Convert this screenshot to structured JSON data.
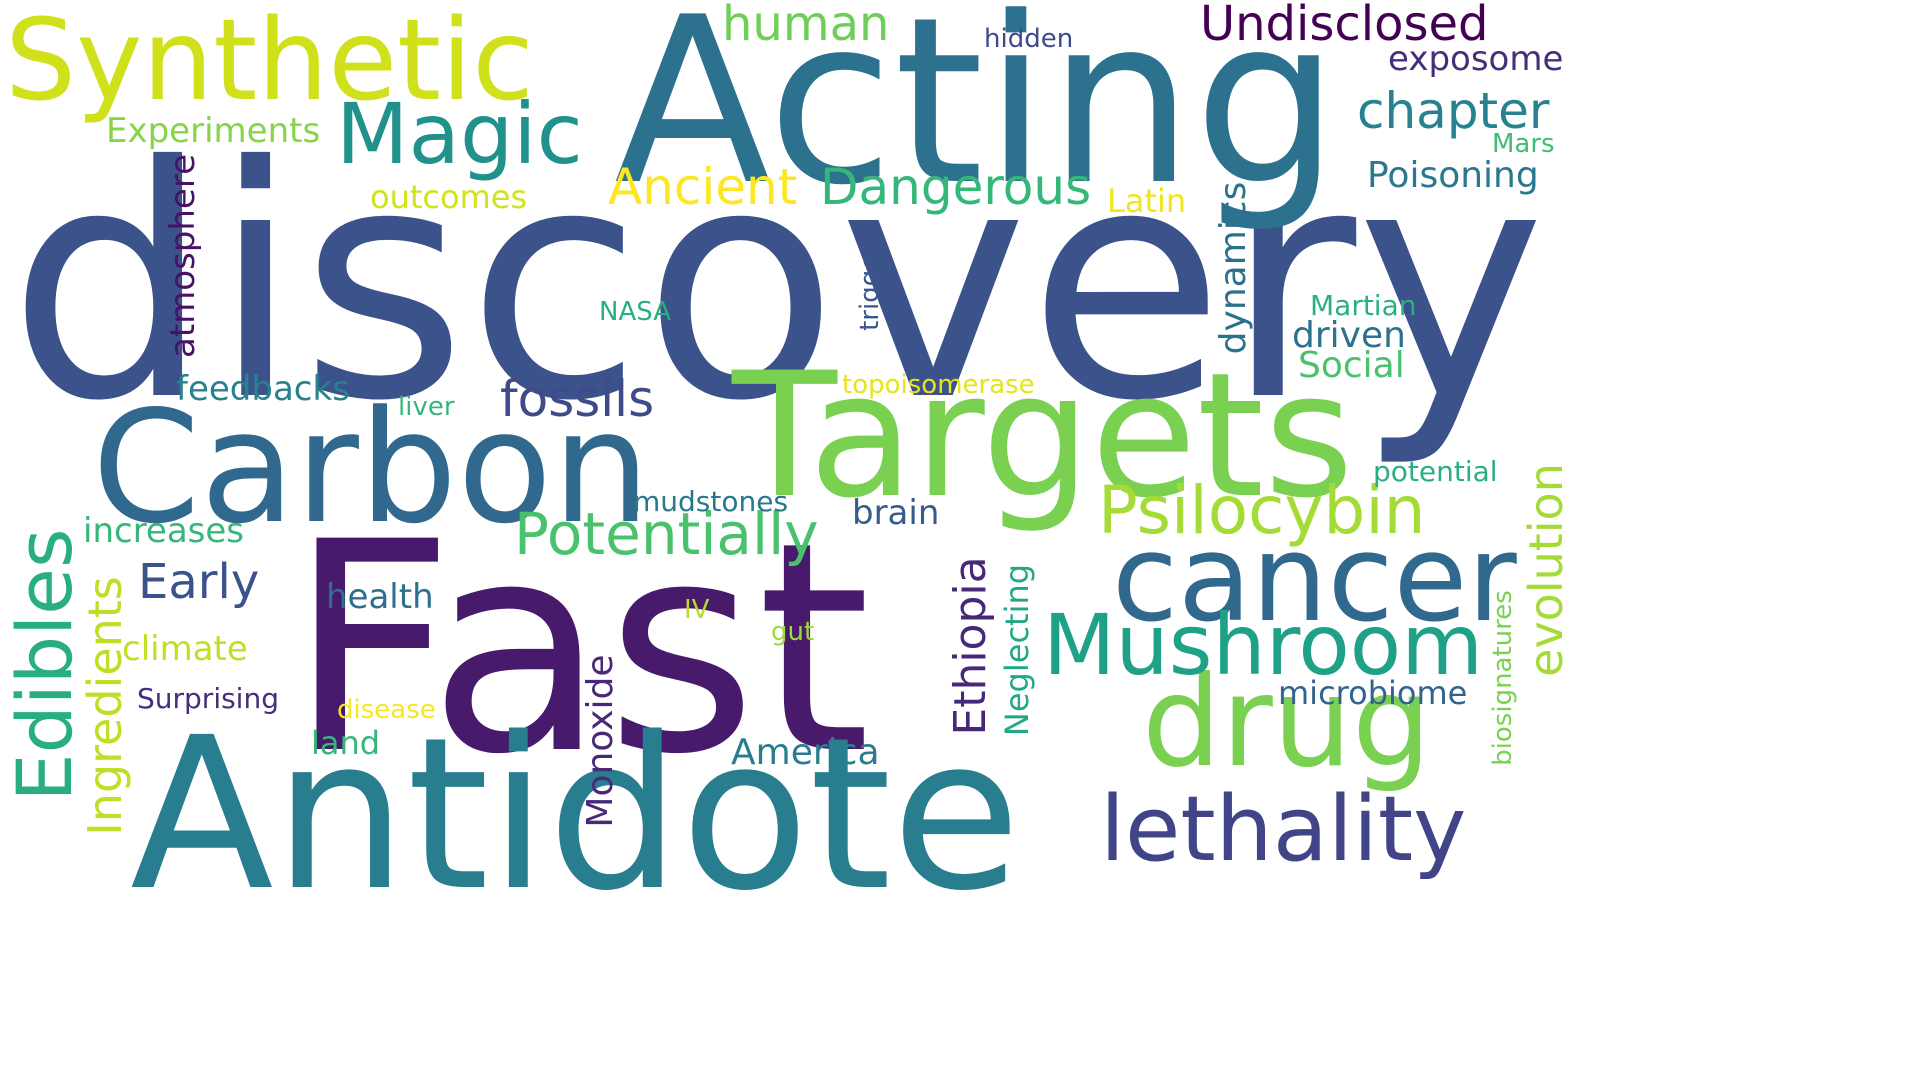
{
  "words": [
    {
      "text": "discovery",
      "color": "#3b528b"
    },
    {
      "text": "Acting",
      "color": "#2c728e"
    },
    {
      "text": "Fast",
      "color": "#481a6c"
    },
    {
      "text": "Antidote",
      "color": "#287d8e"
    },
    {
      "text": "Targets",
      "color": "#7ad151"
    },
    {
      "text": "Carbon",
      "color": "#31688e"
    },
    {
      "text": "Synthetic",
      "color": "#d0e11c"
    },
    {
      "text": "cancer",
      "color": "#31688e"
    },
    {
      "text": "drug",
      "color": "#7ad151"
    },
    {
      "text": "Mushroom",
      "color": "#1fa187"
    },
    {
      "text": "lethality",
      "color": "#414487"
    },
    {
      "text": "Magic",
      "color": "#21918c"
    },
    {
      "text": "Edibles",
      "color": "#29af7f"
    },
    {
      "text": "Psilocybin",
      "color": "#a5db36"
    },
    {
      "text": "Potentially",
      "color": "#4ac16d"
    },
    {
      "text": "Undisclosed",
      "color": "#440154"
    },
    {
      "text": "human",
      "color": "#6ece58"
    },
    {
      "text": "chapter",
      "color": "#26828e"
    },
    {
      "text": "Dangerous",
      "color": "#35b779"
    },
    {
      "text": "Ancient",
      "color": "#fde725"
    },
    {
      "text": "fossils",
      "color": "#3e4a89"
    },
    {
      "text": "Early",
      "color": "#3b528b"
    },
    {
      "text": "Ingredients",
      "color": "#bddf26"
    },
    {
      "text": "Ethiopia",
      "color": "#482878"
    },
    {
      "text": "evolution",
      "color": "#a5db36"
    },
    {
      "text": "America",
      "color": "#287d8e"
    },
    {
      "text": "Monoxide",
      "color": "#482878"
    },
    {
      "text": "Experiments",
      "color": "#86d549"
    },
    {
      "text": "exposome",
      "color": "#472d7b"
    },
    {
      "text": "Poisoning",
      "color": "#2a788e"
    },
    {
      "text": "atmosphere",
      "color": "#471164"
    },
    {
      "text": "increases",
      "color": "#35b779"
    },
    {
      "text": "feedbacks",
      "color": "#26828e"
    },
    {
      "text": "Social",
      "color": "#4ac16d"
    },
    {
      "text": "driven",
      "color": "#2c728e"
    },
    {
      "text": "dynamics",
      "color": "#2c728e"
    },
    {
      "text": "Neglecting",
      "color": "#22a884"
    },
    {
      "text": "microbiome",
      "color": "#33638d"
    },
    {
      "text": "health",
      "color": "#2d708e"
    },
    {
      "text": "climate",
      "color": "#c2df23"
    },
    {
      "text": "brain",
      "color": "#365c8d"
    },
    {
      "text": "outcomes",
      "color": "#d2e21b"
    },
    {
      "text": "Latin",
      "color": "#f1e51d"
    },
    {
      "text": "Surprising",
      "color": "#472d7b"
    },
    {
      "text": "land",
      "color": "#35b779"
    },
    {
      "text": "mudstones",
      "color": "#2a788e"
    },
    {
      "text": "potential",
      "color": "#2ab07f"
    },
    {
      "text": "biosignatures",
      "color": "#7ad151"
    },
    {
      "text": "Martian",
      "color": "#2ab07f"
    },
    {
      "text": "hidden",
      "color": "#3e4a89"
    },
    {
      "text": "Mars",
      "color": "#40bd72"
    },
    {
      "text": "trigger",
      "color": "#39568c"
    },
    {
      "text": "topoisomerase",
      "color": "#e7e419"
    },
    {
      "text": "NASA",
      "color": "#2ab07f"
    },
    {
      "text": "liver",
      "color": "#35b779"
    },
    {
      "text": "disease",
      "color": "#f8e621"
    },
    {
      "text": "IV",
      "color": "#b5de2b"
    },
    {
      "text": "gut",
      "color": "#9bd93c"
    }
  ]
}
